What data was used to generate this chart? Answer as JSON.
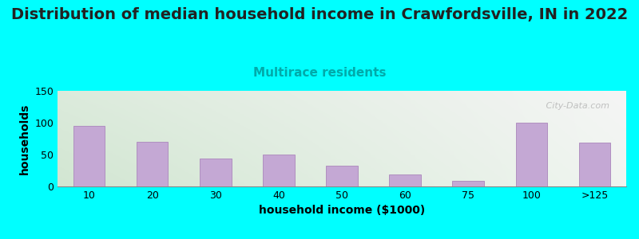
{
  "title": "Distribution of median household income in Crawfordsville, IN in 2022",
  "subtitle": "Multirace residents",
  "xlabel": "household income ($1000)",
  "ylabel": "households",
  "categories": [
    "10",
    "20",
    "30",
    "40",
    "50",
    "60",
    "75",
    "100",
    ">125"
  ],
  "values": [
    95,
    70,
    44,
    50,
    33,
    19,
    9,
    100,
    69
  ],
  "bar_color": "#C4A8D4",
  "bar_edge_color": "#B090C0",
  "background_color": "#00FFFF",
  "plot_bg_color_topleft": "#DDEEDD",
  "plot_bg_color_topright": "#F5F5F5",
  "plot_bg_color_bottomleft": "#DDEEDD",
  "plot_bg_color_bottomright": "#FFFFFF",
  "ylim": [
    0,
    150
  ],
  "yticks": [
    0,
    50,
    100,
    150
  ],
  "title_fontsize": 14,
  "subtitle_fontsize": 11,
  "subtitle_color": "#00AAAA",
  "axis_label_fontsize": 10,
  "tick_fontsize": 9,
  "watermark_text": "   City-Data.com",
  "watermark_color": "#AAAAAA",
  "bar_width": 0.5
}
